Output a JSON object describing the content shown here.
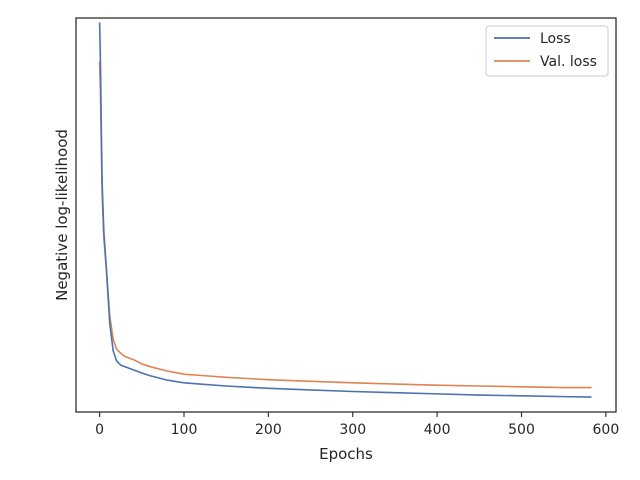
{
  "chart_data": {
    "type": "line",
    "xlabel": "Epochs",
    "ylabel": "Negative log-likelihood",
    "xlim": [
      -28,
      612
    ],
    "ylim": [
      0.0,
      1.0
    ],
    "x_ticks": [
      0,
      100,
      200,
      300,
      400,
      500,
      600
    ],
    "y_ticks_labeled": false,
    "grid": false,
    "legend_position": "top-right",
    "series": [
      {
        "name": "Loss",
        "color": "#4C72B0",
        "x": [
          0,
          1,
          2,
          3,
          5,
          8,
          12,
          16,
          20,
          25,
          30,
          40,
          50,
          60,
          80,
          100,
          125,
          150,
          175,
          200,
          250,
          300,
          350,
          400,
          450,
          500,
          550,
          583
        ],
        "y": [
          0.989,
          0.884,
          0.722,
          0.581,
          0.457,
          0.363,
          0.225,
          0.156,
          0.13,
          0.119,
          0.115,
          0.107,
          0.099,
          0.092,
          0.081,
          0.074,
          0.07,
          0.066,
          0.063,
          0.06,
          0.056,
          0.052,
          0.049,
          0.046,
          0.043,
          0.041,
          0.039,
          0.038
        ]
      },
      {
        "name": "Val. loss",
        "color": "#DD8452",
        "x": [
          0,
          1,
          2,
          3,
          5,
          8,
          12,
          16,
          20,
          25,
          30,
          40,
          50,
          60,
          80,
          100,
          125,
          150,
          175,
          200,
          250,
          300,
          350,
          400,
          450,
          500,
          550,
          583
        ],
        "y": [
          0.89,
          0.813,
          0.671,
          0.552,
          0.441,
          0.363,
          0.244,
          0.185,
          0.16,
          0.149,
          0.141,
          0.133,
          0.122,
          0.115,
          0.104,
          0.096,
          0.092,
          0.088,
          0.085,
          0.082,
          0.078,
          0.074,
          0.071,
          0.068,
          0.066,
          0.064,
          0.062,
          0.062
        ]
      }
    ]
  }
}
